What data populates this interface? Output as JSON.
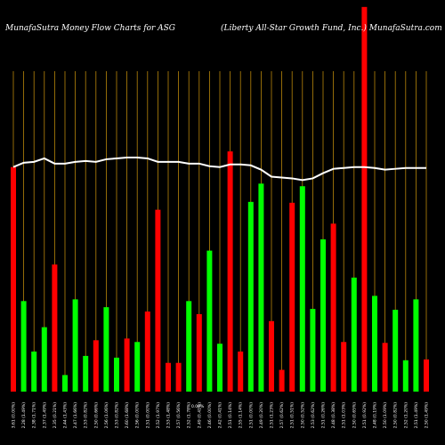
{
  "chart_data": {
    "type": "bar",
    "title_left": "MunafaSutra  Money Flow  Charts for ASG",
    "title_right": "(Liberty All-Star Growth Fund,  Inc.) MunafaSutra.com",
    "categories": [
      "Thu 15 Feb 2024",
      "Wed 14 Feb 2024",
      "Tue 13 Feb 2024",
      "Mon 12 Feb 2024",
      "Fri 09 Feb 2024",
      "Thu 08 Feb 2024",
      "Wed 07 Feb 2024",
      "Tue 06 Feb 2024",
      "Mon 05 Feb 2024",
      "Fri 02 Feb 2024",
      "Thu 01 Feb 2024",
      "Wed 31 Jan 2024",
      "Tue 30 Jan 2024",
      "Mon 29 Jan 2024",
      "Fri 26 Jan 2024",
      "Thu 25 Jan 2024",
      "Wed 24 Jan 2024",
      "Tue 23 Jan 2024",
      "Mon 22 Jan 2024",
      "Fri 19 Jan 2024",
      "Thu 18 Jan 2024",
      "Wed 17 Jan 2024",
      "Tue 16 Jan 2024",
      "Fri 12 Jan 2024",
      "Thu 11 Jan 2024",
      "Wed 10 Jan 2024",
      "Tue 09 Jan 2024",
      "Mon 08 Jan 2024",
      "Fri 05 Jan 2024",
      "Thu 04 Jan 2024",
      "Wed 03 Jan 2024",
      "Tue 02 Jan 2024",
      "Fri 29 Dec 2023",
      "Thu 28 Dec 2023",
      "Wed 27 Dec 2023",
      "Tue 26 Dec 2023",
      "Fri 22 Dec 2023",
      "Thu 21 Dec 2023",
      "Wed 20 Dec 2023",
      "Tue 19 Dec 2023",
      "Mon 18 Dec 2023"
    ],
    "x_tick_labels": [
      "3.61 (0.00%)",
      "2.28 (1.49%)",
      "2.38 (1.71%)",
      "2.37 (1.49%)",
      "2.35 (0.21%)",
      "2.44 (1.43%)",
      "2.47 (1.66%)",
      "2.53 (0.82%)",
      "2.50 (0.66%)",
      "2.56 (1.06%)",
      "2.53 (0.82%)",
      "2.60 (1.68%)",
      "2.56 (0.00%)",
      "2.51 (0.00%)",
      "2.52 (1.97%)",
      "2.53 (1.48%)",
      "2.57 (0.56%)",
      "2.52 (1.78%)",
      "2.49 (0.41%)",
      "2.46 (0.00%)",
      "2.42 (0.41%)",
      "2.51 (0.14%)",
      "2.55 (1.14%)",
      "2.51 (0.00%)",
      "2.49 (0.20%)",
      "2.51 (1.23%)",
      "2.57 (0.62%)",
      "2.51 (0.51%)",
      "2.50 (0.52%)",
      "2.53 (0.62%)",
      "2.51 (0.26%)",
      "2.48 (0.38%)",
      "2.51 (1.03%)",
      "2.50 (0.65%)",
      "2.51 (0.92%)",
      "2.48 (0.19%)",
      "2.50 (1.09%)",
      "2.50 (0.82%)",
      "2.52 (1.20%)",
      "2.51 (1.49%)",
      "2.50 (1.49%)"
    ],
    "axis_note": "0.00%",
    "direction": [
      "red",
      "green",
      "green",
      "green",
      "red",
      "green",
      "green",
      "green",
      "red",
      "green",
      "green",
      "red",
      "green",
      "red",
      "red",
      "red",
      "red",
      "green",
      "red",
      "green",
      "green",
      "red",
      "red",
      "green",
      "green",
      "red",
      "red",
      "red",
      "green",
      "green",
      "green",
      "red",
      "red",
      "green",
      "red",
      "green",
      "red",
      "green",
      "green",
      "green",
      "red"
    ],
    "values": [
      258,
      104,
      46,
      74,
      146,
      19,
      106,
      41,
      59,
      97,
      39,
      61,
      57,
      92,
      209,
      33,
      33,
      104,
      89,
      162,
      55,
      276,
      46,
      218,
      239,
      81,
      25,
      217,
      236,
      95,
      175,
      193,
      57,
      131,
      442,
      110,
      56,
      94,
      36,
      106,
      37
    ],
    "line_values": [
      258,
      263,
      264,
      268,
      262,
      262,
      264,
      265,
      264,
      267,
      268,
      269,
      269,
      268,
      264,
      264,
      264,
      262,
      262,
      259,
      258,
      261,
      261,
      260,
      255,
      247,
      246,
      245,
      243,
      245,
      251,
      256,
      257,
      258,
      258,
      257,
      255,
      256,
      257,
      257,
      257
    ],
    "ylim": [
      0,
      450
    ],
    "colors": {
      "up": "#00ff00",
      "down": "#ff0000",
      "line": "#ffffff",
      "grid": "#b8860b",
      "background": "#000000"
    }
  }
}
